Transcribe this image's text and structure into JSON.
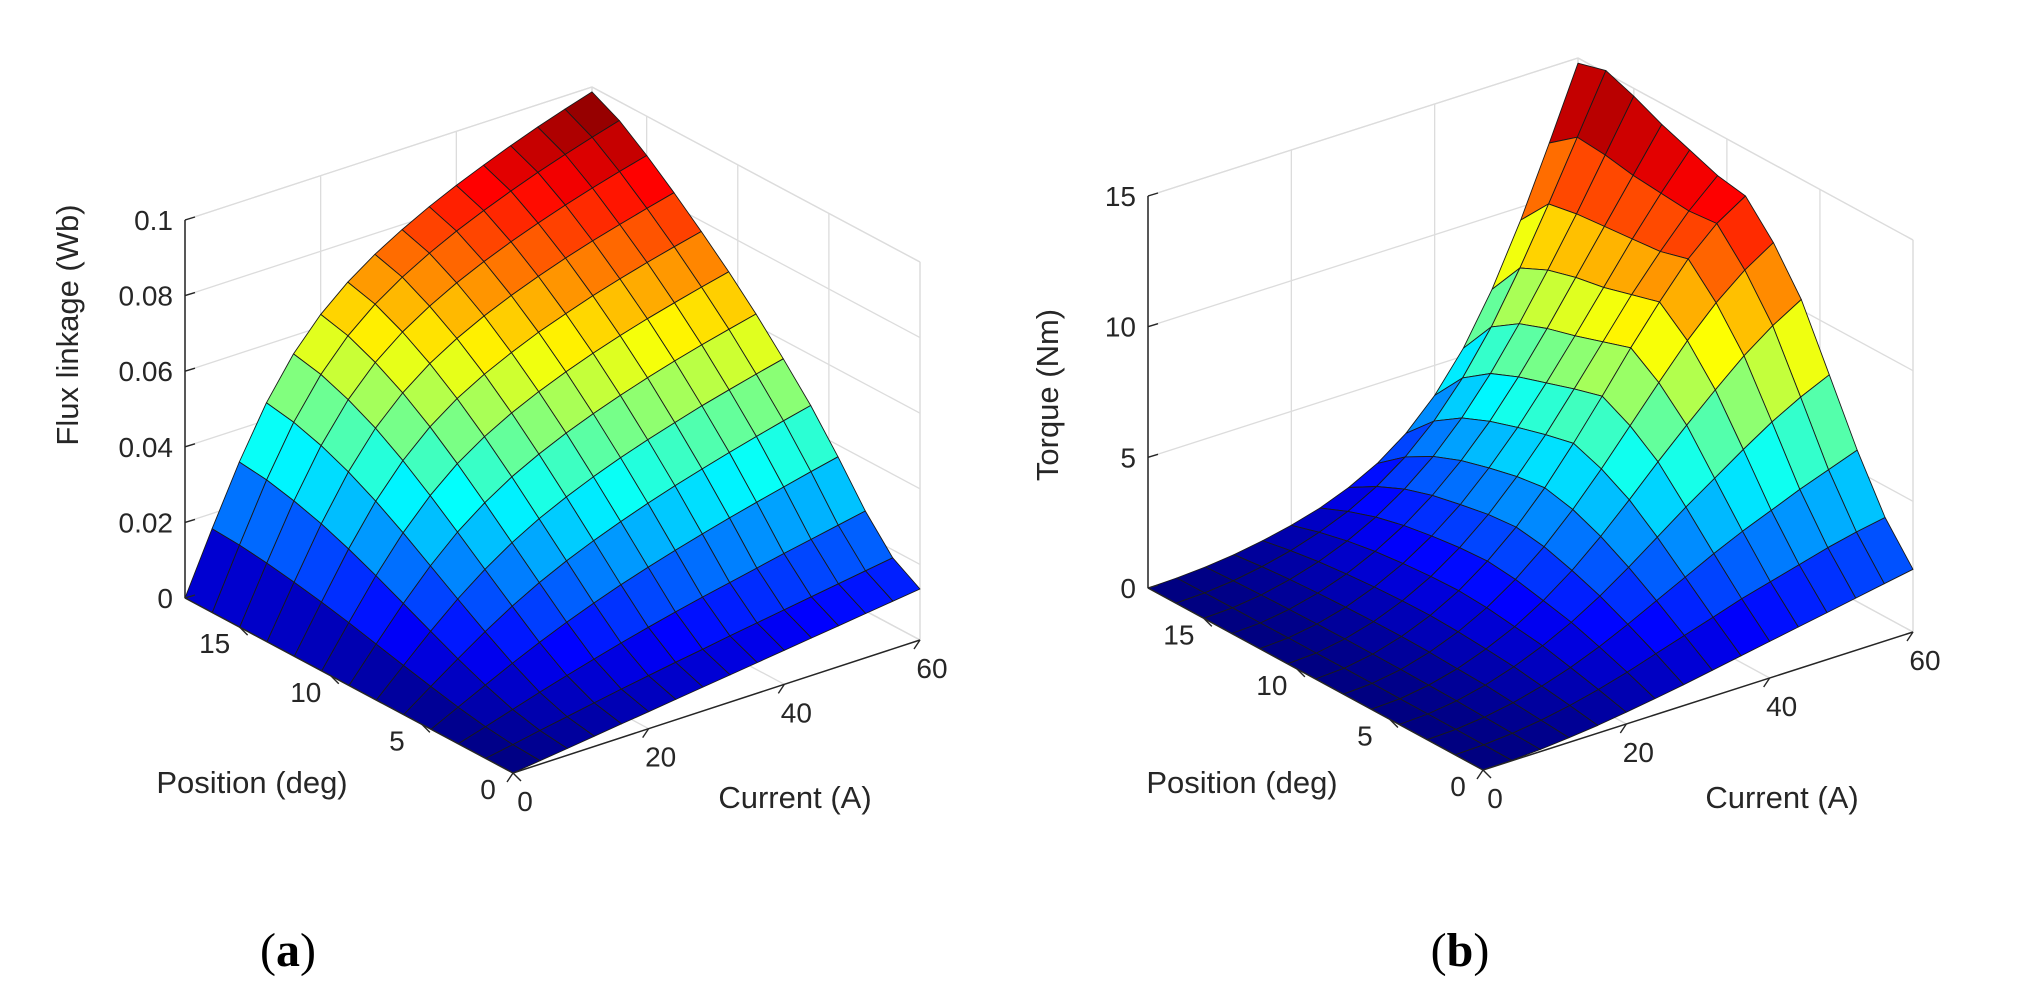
{
  "chart_data": [
    {
      "type": "surface",
      "panel": "a",
      "caption_letter": "a",
      "zlabel": "Flux linkage (Wb)",
      "xlabel": "Current (A)",
      "ylabel": "Position (deg)",
      "xlim": [
        0,
        60
      ],
      "ylim": [
        0,
        18
      ],
      "zlim": [
        0,
        0.1
      ],
      "xticks": [
        "0",
        "20",
        "40",
        "60"
      ],
      "yticks": [
        "0",
        "5",
        "10",
        "15"
      ],
      "zticks": [
        "0",
        "0.02",
        "0.04",
        "0.06",
        "0.08",
        "0.1"
      ],
      "grid": true,
      "colormap": "jet",
      "current_A": [
        0,
        4,
        8,
        12,
        16,
        20,
        24,
        28,
        32,
        36,
        40,
        44,
        48,
        52,
        56,
        60
      ],
      "position_deg": [
        0,
        1.5,
        3,
        4.5,
        6,
        7.5,
        9,
        10.5,
        12,
        13.5,
        15,
        16.5,
        18
      ],
      "flux_Wb": [
        [
          0,
          0.0009,
          0.0018,
          0.0027,
          0.0036,
          0.0045,
          0.0054,
          0.0063,
          0.0072,
          0.0081,
          0.009,
          0.0099,
          0.0108,
          0.0117,
          0.0126,
          0.0135
        ],
        [
          0,
          0.0013,
          0.0027,
          0.004,
          0.0053,
          0.0066,
          0.0078,
          0.009,
          0.0101,
          0.0113,
          0.0124,
          0.0135,
          0.0146,
          0.0157,
          0.0168,
          0.0179
        ],
        [
          0,
          0.0022,
          0.0044,
          0.0066,
          0.0087,
          0.0107,
          0.0126,
          0.0144,
          0.0161,
          0.0177,
          0.0192,
          0.0207,
          0.0222,
          0.0236,
          0.025,
          0.0264
        ],
        [
          0,
          0.0035,
          0.007,
          0.0104,
          0.0136,
          0.0166,
          0.0193,
          0.0218,
          0.0241,
          0.0262,
          0.0282,
          0.0301,
          0.0319,
          0.0336,
          0.0353,
          0.0369
        ],
        [
          0,
          0.0051,
          0.0101,
          0.0149,
          0.0193,
          0.0232,
          0.0266,
          0.0296,
          0.0323,
          0.0348,
          0.0371,
          0.0392,
          0.0412,
          0.0431,
          0.0449,
          0.0466
        ],
        [
          0,
          0.0068,
          0.0135,
          0.0197,
          0.0252,
          0.0299,
          0.0339,
          0.0373,
          0.0403,
          0.043,
          0.0454,
          0.0476,
          0.0497,
          0.0516,
          0.0534,
          0.0551
        ],
        [
          0,
          0.0086,
          0.017,
          0.0246,
          0.0312,
          0.0366,
          0.0411,
          0.0448,
          0.048,
          0.0508,
          0.0533,
          0.0556,
          0.0577,
          0.0596,
          0.0614,
          0.0631
        ],
        [
          0,
          0.0104,
          0.0205,
          0.0295,
          0.037,
          0.0431,
          0.0479,
          0.0518,
          0.0551,
          0.058,
          0.0606,
          0.0629,
          0.065,
          0.0669,
          0.0687,
          0.0704
        ],
        [
          0,
          0.012,
          0.0237,
          0.034,
          0.0424,
          0.049,
          0.0541,
          0.0582,
          0.0616,
          0.0646,
          0.0672,
          0.0696,
          0.0717,
          0.0737,
          0.0755,
          0.0772
        ],
        [
          0,
          0.0134,
          0.0265,
          0.0379,
          0.0471,
          0.0541,
          0.0595,
          0.0638,
          0.0674,
          0.0705,
          0.0732,
          0.0757,
          0.0779,
          0.0799,
          0.0818,
          0.0836
        ],
        [
          0,
          0.0146,
          0.0287,
          0.041,
          0.0508,
          0.0583,
          0.064,
          0.0685,
          0.0723,
          0.0756,
          0.0785,
          0.0811,
          0.0835,
          0.0857,
          0.0877,
          0.0896
        ],
        [
          0,
          0.0155,
          0.0304,
          0.0433,
          0.0536,
          0.0615,
          0.0675,
          0.0723,
          0.0763,
          0.0798,
          0.0829,
          0.0857,
          0.0883,
          0.0907,
          0.0929,
          0.095
        ],
        [
          0,
          0.016,
          0.0313,
          0.0446,
          0.0552,
          0.0633,
          0.0695,
          0.0745,
          0.0787,
          0.0824,
          0.0857,
          0.0887,
          0.0915,
          0.0941,
          0.0965,
          0.0987
        ]
      ]
    },
    {
      "type": "surface",
      "panel": "b",
      "caption_letter": "b",
      "zlabel": "Torque (Nm)",
      "xlabel": "Current (A)",
      "ylabel": "Position (deg)",
      "xlim": [
        0,
        60
      ],
      "ylim": [
        0,
        18
      ],
      "zlim": [
        0,
        15
      ],
      "xticks": [
        "0",
        "20",
        "40",
        "60"
      ],
      "yticks": [
        "0",
        "5",
        "10",
        "15"
      ],
      "zticks": [
        "0",
        "5",
        "10",
        "15"
      ],
      "grid": true,
      "colormap": "jet",
      "current_A": [
        0,
        4,
        8,
        12,
        16,
        20,
        24,
        28,
        32,
        36,
        40,
        44,
        48,
        52,
        56,
        60
      ],
      "position_deg": [
        0,
        1.5,
        3,
        4.5,
        6,
        7.5,
        9,
        10.5,
        12,
        13.5,
        15,
        16.5,
        18
      ],
      "torque_Nm": [
        [
          0,
          0.02,
          0.08,
          0.18,
          0.3,
          0.45,
          0.62,
          0.8,
          1.0,
          1.2,
          1.4,
          1.6,
          1.8,
          2.0,
          2.2,
          2.4
        ],
        [
          0,
          0.03,
          0.12,
          0.27,
          0.48,
          0.74,
          1.05,
          1.4,
          1.75,
          2.1,
          2.45,
          2.75,
          3.05,
          3.35,
          3.6,
          3.8
        ],
        [
          0,
          0.04,
          0.16,
          0.36,
          0.64,
          1.0,
          1.44,
          1.95,
          2.5,
          3.05,
          3.6,
          4.1,
          4.55,
          5.0,
          5.4,
          5.8
        ],
        [
          0,
          0.05,
          0.2,
          0.45,
          0.8,
          1.25,
          1.8,
          2.45,
          3.2,
          4.0,
          4.8,
          5.55,
          6.3,
          7.0,
          7.6,
          8.1
        ],
        [
          0,
          0.05,
          0.22,
          0.5,
          0.9,
          1.4,
          2.05,
          2.85,
          3.8,
          4.85,
          5.95,
          7.0,
          8.0,
          8.95,
          9.75,
          10.4
        ],
        [
          0,
          0.06,
          0.24,
          0.55,
          0.98,
          1.55,
          2.28,
          3.18,
          4.25,
          5.45,
          6.75,
          8.05,
          9.3,
          10.4,
          11.3,
          12.0
        ],
        [
          0,
          0.06,
          0.25,
          0.57,
          1.02,
          1.62,
          2.4,
          3.35,
          4.5,
          5.85,
          7.3,
          8.8,
          10.2,
          11.5,
          12.5,
          13.2
        ],
        [
          0,
          0.06,
          0.25,
          0.56,
          1.0,
          1.58,
          2.33,
          3.25,
          4.35,
          5.6,
          7.0,
          8.45,
          9.9,
          11.2,
          12.4,
          13.4
        ],
        [
          0,
          0.06,
          0.24,
          0.53,
          0.95,
          1.5,
          2.2,
          3.05,
          4.1,
          5.3,
          6.65,
          8.1,
          9.6,
          11.1,
          12.5,
          13.8
        ],
        [
          0,
          0.05,
          0.22,
          0.49,
          0.87,
          1.38,
          2.02,
          2.82,
          3.8,
          4.95,
          6.3,
          7.8,
          9.4,
          11.0,
          12.6,
          14.2
        ],
        [
          0,
          0.05,
          0.19,
          0.43,
          0.76,
          1.2,
          1.76,
          2.48,
          3.38,
          4.5,
          5.85,
          7.4,
          9.1,
          10.9,
          12.8,
          14.7
        ],
        [
          0,
          0.04,
          0.15,
          0.34,
          0.6,
          0.95,
          1.4,
          2.0,
          2.78,
          3.8,
          5.1,
          6.7,
          8.6,
          10.7,
          12.9,
          15.1
        ],
        [
          0,
          0.03,
          0.1,
          0.22,
          0.4,
          0.64,
          0.95,
          1.38,
          1.95,
          2.75,
          3.85,
          5.3,
          7.2,
          9.5,
          12.1,
          14.8
        ]
      ]
    }
  ]
}
